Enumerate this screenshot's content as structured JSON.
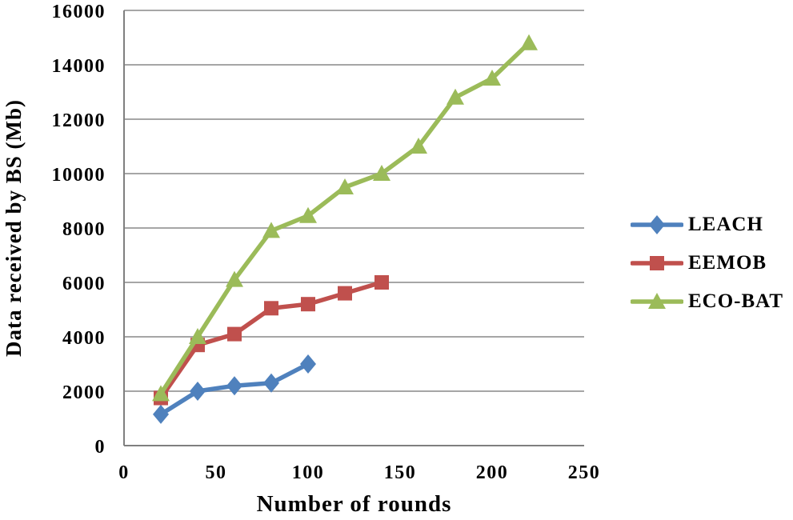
{
  "chart_data": {
    "type": "line",
    "title": "",
    "xlabel": "Number of rounds",
    "ylabel": "Data received  by BS (Mb)",
    "xlim": [
      0,
      250
    ],
    "ylim": [
      0,
      16000
    ],
    "xticks": [
      0,
      50,
      100,
      150,
      200,
      250
    ],
    "yticks": [
      0,
      2000,
      4000,
      6000,
      8000,
      10000,
      12000,
      14000,
      16000
    ],
    "grid": "horizontal",
    "legend_position": "right",
    "background_color": "#ffffff",
    "gridline_color": "#a6a6a6",
    "axis_color": "#7f7f7f",
    "text_color": "#000000",
    "series": [
      {
        "name": "LEACH",
        "color": "#4f81bd",
        "marker": "diamond",
        "x": [
          20,
          40,
          60,
          80,
          100
        ],
        "y": [
          1150,
          2000,
          2200,
          2300,
          3000
        ]
      },
      {
        "name": "EEMOB",
        "color": "#c0504d",
        "marker": "square",
        "x": [
          20,
          40,
          60,
          80,
          100,
          120,
          140
        ],
        "y": [
          1750,
          3700,
          4100,
          5050,
          5200,
          5600,
          6000
        ]
      },
      {
        "name": "ECO-BAT",
        "color": "#9bbb59",
        "marker": "triangle",
        "x": [
          20,
          40,
          60,
          80,
          100,
          120,
          140,
          160,
          180,
          200,
          220
        ],
        "y": [
          1900,
          4000,
          6100,
          7900,
          8450,
          9500,
          10000,
          11000,
          12800,
          13500,
          14800
        ]
      }
    ]
  }
}
